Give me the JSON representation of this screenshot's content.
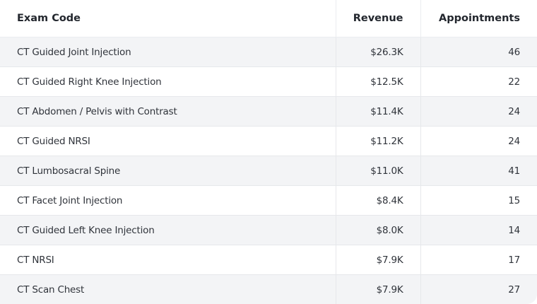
{
  "table": {
    "headers": [
      "Exam Code",
      "Revenue",
      "Appointments"
    ],
    "rows": [
      {
        "exam_code": "CT Guided Joint Injection",
        "revenue": "$26.3K",
        "appointments": "46"
      },
      {
        "exam_code": "CT Guided Right Knee Injection",
        "revenue": "$12.5K",
        "appointments": "22"
      },
      {
        "exam_code": "CT Abdomen / Pelvis with Contrast",
        "revenue": "$11.4K",
        "appointments": "24"
      },
      {
        "exam_code": "CT Guided NRSI",
        "revenue": "$11.2K",
        "appointments": "24"
      },
      {
        "exam_code": "CT Lumbosacral Spine",
        "revenue": "$11.0K",
        "appointments": "41"
      },
      {
        "exam_code": "CT Facet Joint Injection",
        "revenue": "$8.4K",
        "appointments": "15"
      },
      {
        "exam_code": "CT Guided Left Knee Injection",
        "revenue": "$8.0K",
        "appointments": "14"
      },
      {
        "exam_code": "CT NRSI",
        "revenue": "$7.9K",
        "appointments": "17"
      },
      {
        "exam_code": "CT Scan Chest",
        "revenue": "$7.9K",
        "appointments": "27"
      }
    ]
  },
  "colors": {
    "stripe": "#f3f4f6",
    "border": "#e6e8eb",
    "text": "#30343b"
  }
}
